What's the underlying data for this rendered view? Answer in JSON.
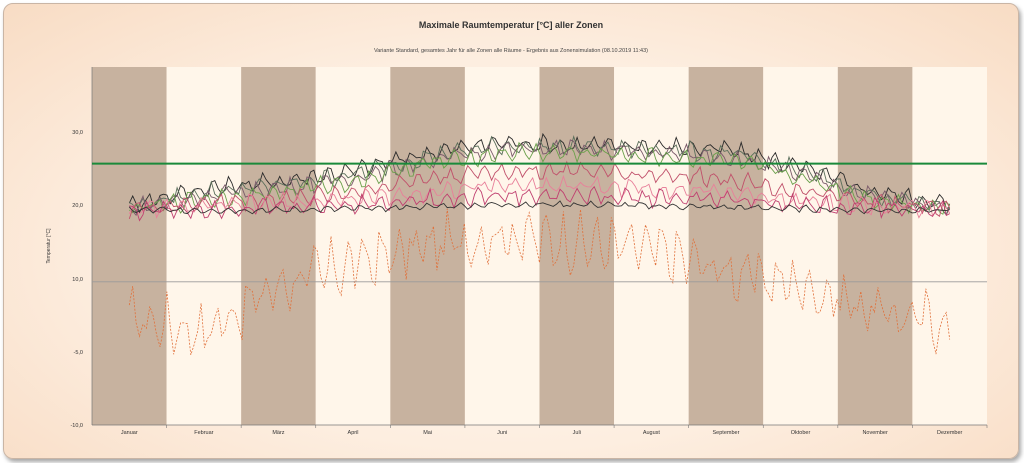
{
  "chart_data": {
    "type": "line",
    "title": "Maximale Raumtemperatur [°C] aller Zonen",
    "subtitle": "Variante Standard, gesamtes Jahr für alle Zonen alle Räume - Ergebnis aus Zonensimulation (08.10.2019 11:43)",
    "ylabel": "Temperatur [°C]",
    "xlabel": "",
    "ylim": [
      -10,
      40
    ],
    "yticks": [
      "-10,0",
      "-5,0",
      "10,0",
      "20,0",
      "30,0"
    ],
    "categories": [
      "Januar",
      "Februar",
      "März",
      "April",
      "Mai",
      "Juni",
      "Juli",
      "August",
      "September",
      "Oktober",
      "November",
      "Dezember"
    ],
    "reference_lines": [
      {
        "value": 26.5,
        "color": "#1a8a3a"
      },
      {
        "value": 10,
        "color": "#9a9a9a"
      }
    ],
    "month_colors": {
      "dark": "#c7b29f",
      "light": "#fff6ea"
    },
    "series": [
      {
        "color": "#e0703a",
        "dashed": true,
        "values": [
          5.0,
          3.0,
          9.5,
          12.5,
          15.0,
          16.5,
          15.5,
          14.5,
          11.5,
          9.5,
          6.0,
          4.0
        ]
      },
      {
        "color": "#2a2a2a",
        "values": [
          20.8,
          23.0,
          24.0,
          25.5,
          28.0,
          29.5,
          29.0,
          29.0,
          28.5,
          26.0,
          22.5,
          20.8
        ]
      },
      {
        "color": "#5a6e5a",
        "values": [
          20.5,
          22.5,
          23.5,
          25.0,
          27.5,
          29.0,
          28.8,
          28.5,
          28.0,
          25.5,
          22.0,
          20.5
        ]
      },
      {
        "color": "#7a5a6a",
        "values": [
          20.3,
          22.0,
          23.0,
          24.5,
          27.0,
          28.5,
          28.5,
          28.0,
          27.5,
          25.0,
          21.8,
          20.3
        ]
      },
      {
        "color": "#6aa04a",
        "values": [
          20.2,
          21.5,
          22.5,
          24.0,
          26.5,
          28.0,
          28.0,
          27.5,
          27.0,
          24.5,
          21.5,
          20.2
        ]
      },
      {
        "color": "#c0506a",
        "values": [
          20.2,
          21.0,
          21.5,
          22.5,
          24.5,
          25.5,
          25.5,
          25.0,
          24.5,
          22.5,
          21.0,
          20.2
        ]
      },
      {
        "color": "#e8809a",
        "values": [
          20.0,
          20.5,
          21.0,
          21.5,
          22.5,
          23.5,
          23.5,
          23.0,
          22.5,
          21.5,
          20.5,
          20.0
        ]
      },
      {
        "color": "#c04070",
        "values": [
          20.0,
          20.2,
          20.4,
          20.8,
          21.5,
          22.0,
          22.0,
          21.8,
          21.5,
          20.8,
          20.2,
          20.0
        ]
      },
      {
        "color": "#333333",
        "values": [
          20.0,
          20.0,
          20.0,
          20.2,
          20.5,
          20.8,
          20.8,
          20.6,
          20.4,
          20.2,
          20.0,
          20.0
        ]
      }
    ]
  }
}
